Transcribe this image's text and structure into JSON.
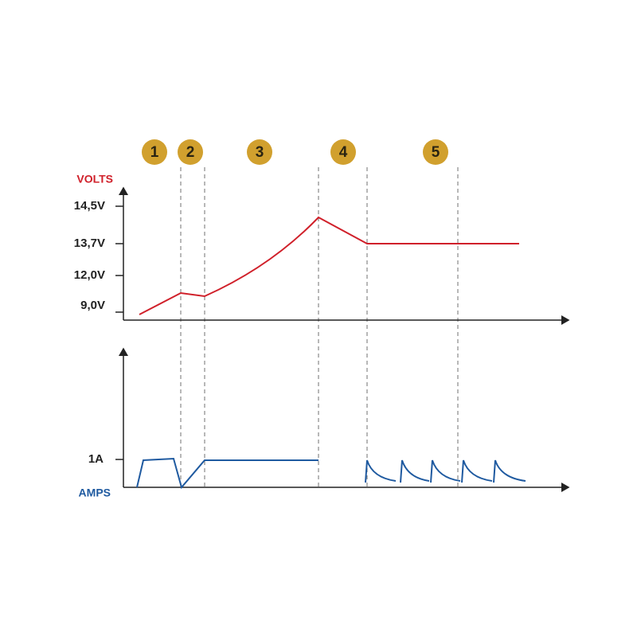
{
  "stages": [
    "1",
    "2",
    "3",
    "4",
    "5"
  ],
  "volts_axis": {
    "title": "VOLTS",
    "ticks": [
      "14,5V",
      "13,7V",
      "12,0V",
      "9,0V"
    ]
  },
  "amps_axis": {
    "title": "AMPS",
    "ticks": [
      "1A"
    ]
  }
}
